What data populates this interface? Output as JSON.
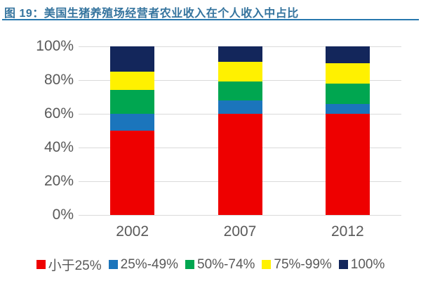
{
  "header": {
    "title": "图 19：美国生猪养殖场经营者农业收入在个人收入中占比"
  },
  "chart_data": {
    "type": "bar",
    "stacked": true,
    "percent_stacked": true,
    "title": "美国生猪养殖场经营者农业收入在个人收入中占比",
    "categories": [
      "2002",
      "2007",
      "2012"
    ],
    "series": [
      {
        "name": "小于25%",
        "color": "#EE0000",
        "values": [
          50,
          60,
          60
        ]
      },
      {
        "name": "25%-49%",
        "color": "#1B75BC",
        "values": [
          10,
          8,
          6
        ]
      },
      {
        "name": "50%-74%",
        "color": "#00A650",
        "values": [
          14,
          11,
          12
        ]
      },
      {
        "name": "75%-99%",
        "color": "#FFF100",
        "values": [
          11,
          12,
          12
        ]
      },
      {
        "name": "100%",
        "color": "#13265B",
        "values": [
          15,
          9,
          10
        ]
      }
    ],
    "y_ticks": [
      "100%",
      "80%",
      "60%",
      "40%",
      "20%",
      "0%"
    ],
    "ylim": [
      0,
      100
    ],
    "grid": true,
    "legend_position": "bottom"
  },
  "colors": {
    "title_text": "#35749E",
    "title_rule": "#2878AE",
    "gridline": "#DADADA",
    "axis_text": "#595959",
    "background": "#FFFFFF"
  }
}
